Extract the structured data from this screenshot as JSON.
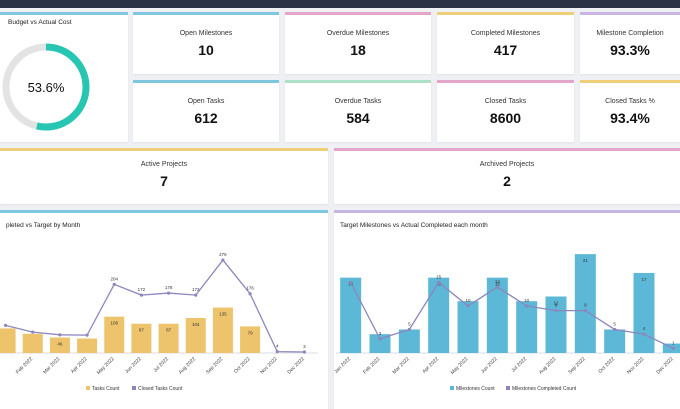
{
  "colors": {
    "teal": "#26c6b2",
    "gold": "#edc46c",
    "blue": "#5cb8d6",
    "purple_line": "#8c86bd",
    "topbar": "#2b3245"
  },
  "budget": {
    "title": "Budget vs Actual Cost",
    "value_label": "53.6%",
    "fraction": 0.536
  },
  "kpis": [
    {
      "label": "Open Milestones",
      "value": "10",
      "accent": "#7fc7e0"
    },
    {
      "label": "Overdue Milestones",
      "value": "18",
      "accent": "#e3a6c8"
    },
    {
      "label": "Completed Milestones",
      "value": "417",
      "accent": "#f0cf7a"
    },
    {
      "label": "Milestone Completion",
      "value": "93.3%",
      "accent": "#c8b6e2"
    },
    {
      "label": "Open Tasks",
      "value": "612",
      "accent": "#7fc7e0"
    },
    {
      "label": "Overdue Tasks",
      "value": "584",
      "accent": "#aee0c8"
    },
    {
      "label": "Closed Tasks",
      "value": "8600",
      "accent": "#e3a6c8"
    },
    {
      "label": "Closed Tasks %",
      "value": "93.4%",
      "accent": "#f0cf7a"
    }
  ],
  "projects": {
    "active": {
      "label": "Active Projects",
      "value": "7"
    },
    "archived": {
      "label": "Archived Projects",
      "value": "2"
    }
  },
  "chart_data": [
    {
      "type": "bar",
      "title": "pleted vs Target by Month",
      "categories": [
        "",
        "Feb 2022",
        "Mar 2022",
        "Apr 2022",
        "May 2022",
        "Jun 2022",
        "Jul 2022",
        "Aug 2022",
        "Sep 2022",
        "Oct 2022",
        "Nov 2022",
        "Dec 2022"
      ],
      "series": [
        {
          "name": "Tasks Count",
          "kind": "bar",
          "values": [
            73,
            57,
            46,
            43,
            108,
            87,
            87,
            104,
            135,
            79,
            null,
            null
          ],
          "labels": [
            "",
            "",
            "46",
            "",
            "108",
            "87",
            "87",
            "104",
            "135",
            "79",
            "",
            ""
          ]
        },
        {
          "name": "Closed Tasks Count",
          "kind": "line",
          "values": [
            82,
            62,
            54,
            53,
            204,
            172,
            178,
            172,
            276,
            176,
            4,
            3
          ],
          "labels": [
            "",
            "",
            "",
            "",
            "204",
            "172",
            "178",
            "172",
            "276",
            "176",
            "4",
            "3"
          ]
        }
      ],
      "ylim": [
        0,
        300
      ]
    },
    {
      "type": "bar",
      "title": "Target Milestones vs Actual Completed each month",
      "categories": [
        "Jan 2022",
        "Feb 2022",
        "Mar 2022",
        "Apr 2022",
        "May 2022",
        "Jun 2022",
        "Jul 2022",
        "Aug 2022",
        "Sep 2022",
        "Oct 2022",
        "Nov 2022",
        "Dec 2022"
      ],
      "series": [
        {
          "name": "Milestones Count",
          "kind": "bar",
          "values": [
            16,
            4,
            5,
            16,
            11,
            16,
            11,
            12,
            21,
            5,
            17,
            2
          ],
          "labels": [
            "16",
            "",
            "",
            "16",
            "",
            "16",
            "",
            "12",
            "21",
            "",
            "17",
            ""
          ]
        },
        {
          "name": "Milestones Completed Count",
          "kind": "line",
          "values": [
            15,
            3,
            5,
            15,
            10,
            14,
            10,
            9,
            9,
            5,
            4,
            1
          ],
          "labels": [
            "",
            "3",
            "5",
            "15",
            "10",
            "14",
            "10",
            "9",
            "9",
            "5",
            "4",
            "1"
          ]
        }
      ],
      "ylim": [
        0,
        24
      ]
    }
  ]
}
